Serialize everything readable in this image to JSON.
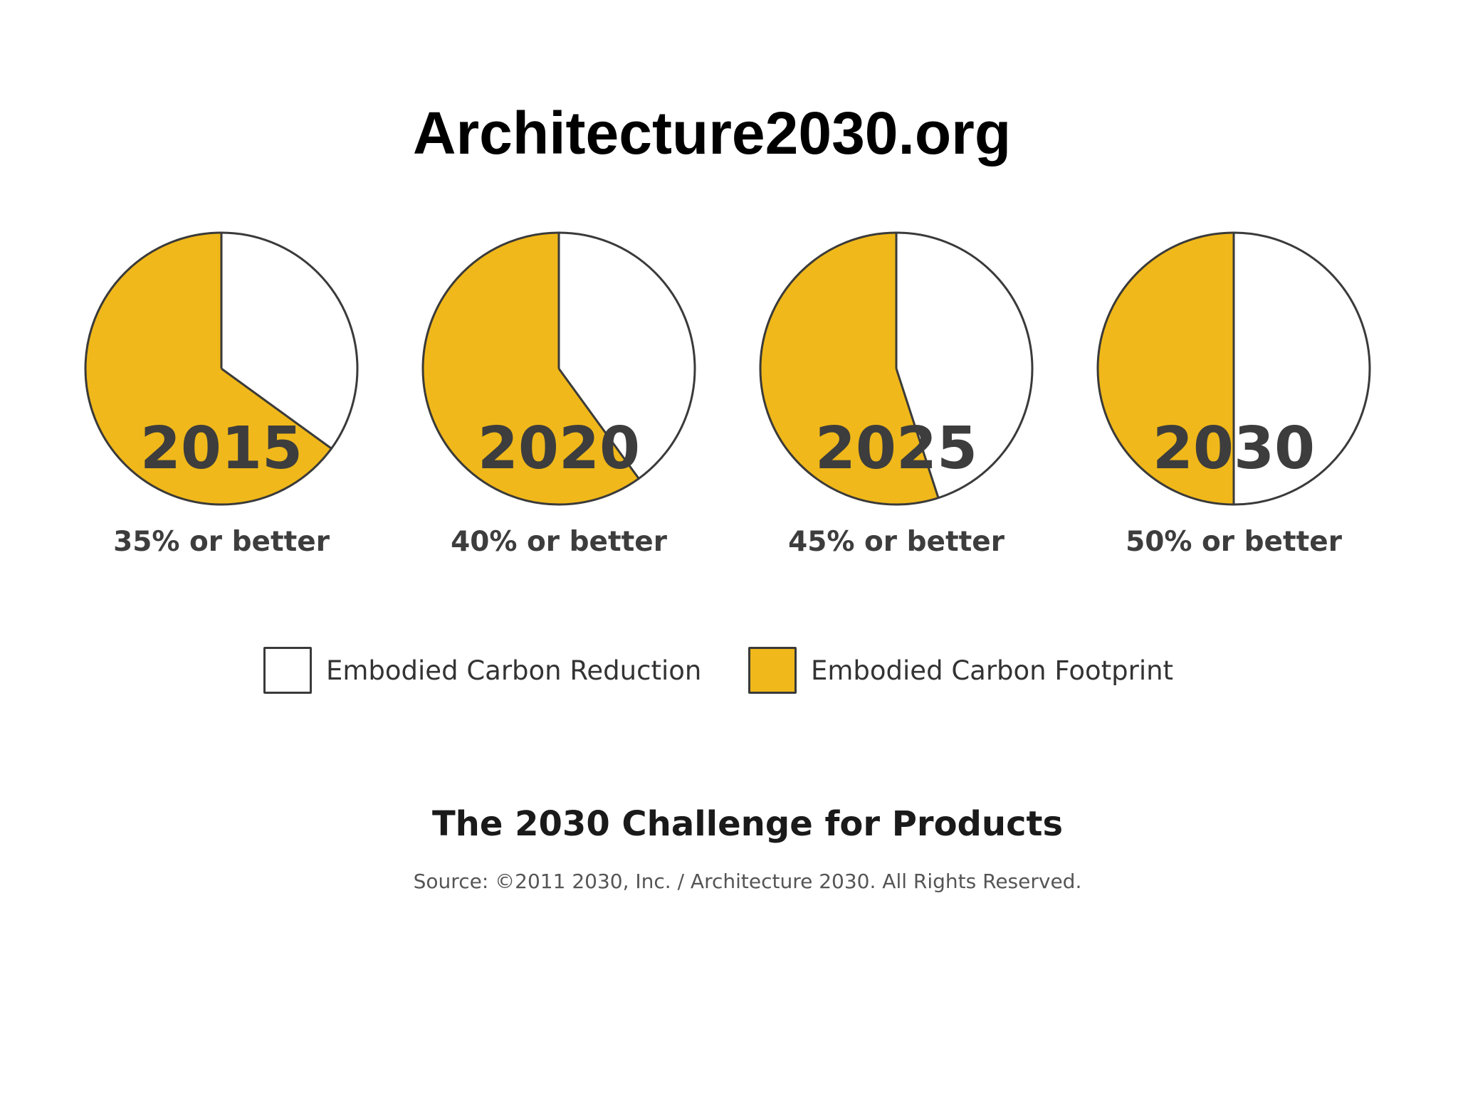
{
  "header": {
    "site_title": "Architecture2030.org"
  },
  "chart_data": {
    "type": "pie",
    "title": "The 2030 Challenge for Products",
    "source": "Source: ©2011 2030, Inc. / Architecture 2030. All Rights Reserved.",
    "colors": {
      "footprint": "#F0B81A",
      "reduction": "#FFFFFF",
      "outline": "#3a3a3a",
      "year_text": "#3d3d3d"
    },
    "legend": [
      {
        "label": "Embodied Carbon Reduction",
        "color": "#FFFFFF"
      },
      {
        "label": "Embodied Carbon Footprint",
        "color": "#F0B81A"
      }
    ],
    "pies": [
      {
        "year": "2015",
        "caption": "35% or better",
        "reduction": 35,
        "footprint": 65
      },
      {
        "year": "2020",
        "caption": "40% or better",
        "reduction": 40,
        "footprint": 60
      },
      {
        "year": "2025",
        "caption": "45% or better",
        "reduction": 45,
        "footprint": 55
      },
      {
        "year": "2030",
        "caption": "50% or better",
        "reduction": 50,
        "footprint": 50
      }
    ]
  }
}
